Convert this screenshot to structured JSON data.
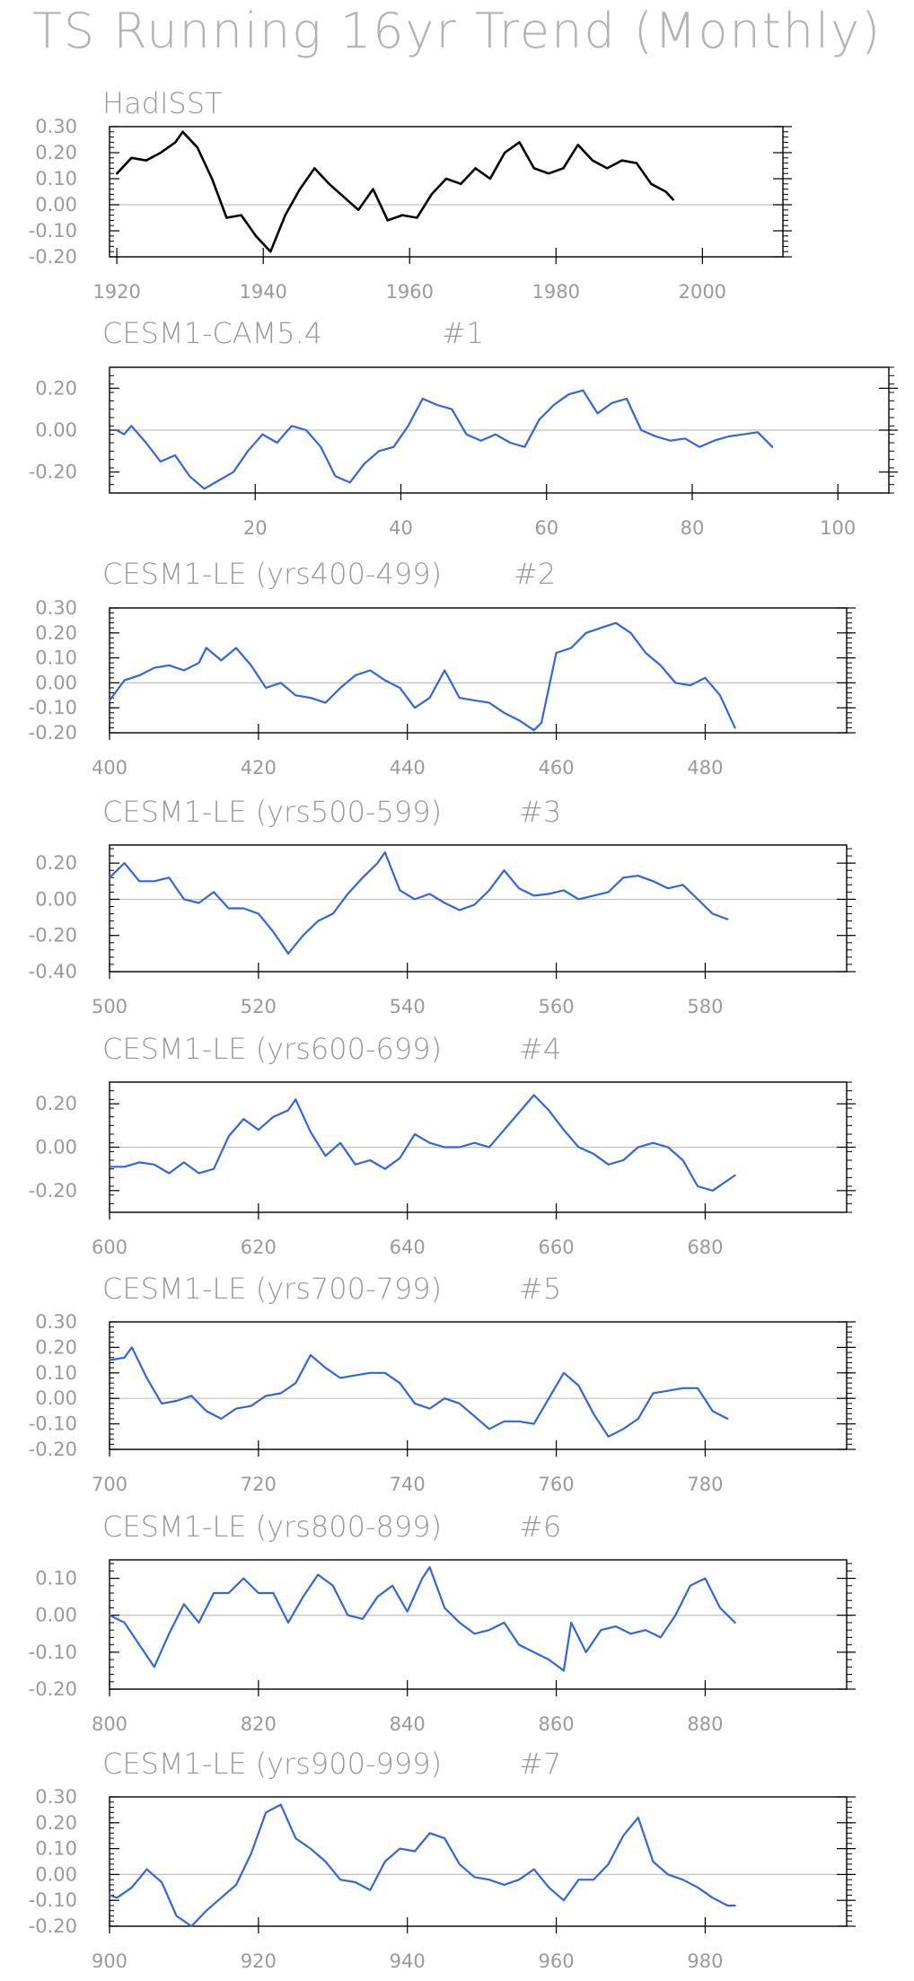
{
  "page": {
    "title": "TS Running 16yr Trend (Monthly)"
  },
  "colors": {
    "obs_line": "#000000",
    "model_line": "#3366dd",
    "zero_line": "#c0c0c0",
    "axes": "#000000",
    "text": "#9a9a9a"
  },
  "chart_data": [
    {
      "type": "line",
      "title": "HadISST",
      "run_label": "",
      "xlim": [
        1919,
        2011
      ],
      "ylim": [
        -0.2,
        0.3
      ],
      "yticks": [
        "-0.20",
        "-0.10",
        "0.00",
        "0.10",
        "0.20",
        "0.30"
      ],
      "ytick_values": [
        -0.2,
        -0.1,
        0,
        0.1,
        0.2,
        0.3
      ],
      "xticks": [
        1920,
        1940,
        1960,
        1980,
        2000
      ],
      "series": [
        {
          "x": [
            1920,
            1922,
            1924,
            1926,
            1928,
            1929,
            1931,
            1933,
            1935,
            1937,
            1939,
            1941,
            1943,
            1945,
            1947,
            1949,
            1951,
            1953,
            1955,
            1957,
            1959,
            1961,
            1963,
            1965,
            1967,
            1969,
            1971,
            1973,
            1975,
            1977,
            1979,
            1981,
            1983,
            1985,
            1987,
            1989,
            1991,
            1993,
            1995,
            1996
          ],
          "y": [
            0.12,
            0.18,
            0.17,
            0.2,
            0.24,
            0.28,
            0.22,
            0.1,
            -0.05,
            -0.04,
            -0.12,
            -0.18,
            -0.04,
            0.06,
            0.14,
            0.08,
            0.03,
            -0.02,
            0.06,
            -0.06,
            -0.04,
            -0.05,
            0.04,
            0.1,
            0.08,
            0.14,
            0.1,
            0.2,
            0.24,
            0.14,
            0.12,
            0.14,
            0.23,
            0.17,
            0.14,
            0.17,
            0.16,
            0.08,
            0.05,
            0.02
          ]
        }
      ]
    },
    {
      "type": "line",
      "title": "CESM1-CAM5.4",
      "run_label": "#1",
      "xlim": [
        0,
        107
      ],
      "ylim": [
        -0.3,
        0.3
      ],
      "yticks": [
        "-0.20",
        "0.00",
        "0.20"
      ],
      "ytick_values": [
        -0.2,
        0,
        0.2
      ],
      "xticks": [
        20,
        40,
        60,
        80,
        100
      ],
      "series": [
        {
          "x": [
            1,
            2,
            3,
            5,
            7,
            9,
            11,
            13,
            15,
            17,
            19,
            21,
            23,
            25,
            27,
            29,
            31,
            33,
            35,
            37,
            39,
            41,
            43,
            45,
            47,
            49,
            51,
            53,
            55,
            57,
            59,
            61,
            63,
            65,
            67,
            69,
            71,
            73,
            75,
            77,
            79,
            81,
            83,
            85,
            87,
            89,
            91
          ],
          "y": [
            0.0,
            -0.02,
            0.02,
            -0.06,
            -0.15,
            -0.12,
            -0.22,
            -0.28,
            -0.24,
            -0.2,
            -0.1,
            -0.02,
            -0.06,
            0.02,
            0.0,
            -0.08,
            -0.22,
            -0.25,
            -0.16,
            -0.1,
            -0.08,
            0.02,
            0.15,
            0.12,
            0.1,
            -0.02,
            -0.05,
            -0.02,
            -0.06,
            -0.08,
            0.05,
            0.12,
            0.17,
            0.19,
            0.08,
            0.13,
            0.15,
            0.0,
            -0.03,
            -0.05,
            -0.04,
            -0.08,
            -0.05,
            -0.03,
            -0.02,
            -0.01,
            -0.08
          ]
        }
      ]
    },
    {
      "type": "line",
      "title": "CESM1-LE (yrs400-499)",
      "run_label": "#2",
      "xlim": [
        400,
        499
      ],
      "ylim": [
        -0.2,
        0.3
      ],
      "yticks": [
        "-0.20",
        "-0.10",
        "0.00",
        "0.10",
        "0.20",
        "0.30"
      ],
      "ytick_values": [
        -0.2,
        -0.1,
        0,
        0.1,
        0.2,
        0.3
      ],
      "xticks": [
        400,
        420,
        440,
        460,
        480
      ],
      "series": [
        {
          "x": [
            400,
            402,
            404,
            406,
            408,
            410,
            412,
            413,
            415,
            417,
            419,
            421,
            423,
            425,
            427,
            429,
            431,
            433,
            435,
            437,
            439,
            441,
            443,
            445,
            447,
            449,
            451,
            453,
            455,
            457,
            458,
            460,
            462,
            464,
            466,
            468,
            470,
            472,
            474,
            476,
            478,
            480,
            482,
            484
          ],
          "y": [
            -0.07,
            0.01,
            0.03,
            0.06,
            0.07,
            0.05,
            0.08,
            0.14,
            0.09,
            0.14,
            0.07,
            -0.02,
            0.0,
            -0.05,
            -0.06,
            -0.08,
            -0.02,
            0.03,
            0.05,
            0.01,
            -0.02,
            -0.1,
            -0.06,
            0.05,
            -0.06,
            -0.07,
            -0.08,
            -0.12,
            -0.15,
            -0.19,
            -0.16,
            0.12,
            0.14,
            0.2,
            0.22,
            0.24,
            0.2,
            0.12,
            0.07,
            0.0,
            -0.01,
            0.02,
            -0.05,
            -0.18
          ]
        }
      ]
    },
    {
      "type": "line",
      "title": "CESM1-LE (yrs500-599)",
      "run_label": "#3",
      "xlim": [
        500,
        599
      ],
      "ylim": [
        -0.4,
        0.3
      ],
      "yticks": [
        "-0.40",
        "-0.20",
        "0.00",
        "0.20"
      ],
      "ytick_values": [
        -0.4,
        -0.2,
        0,
        0.2
      ],
      "xticks": [
        500,
        520,
        540,
        560,
        580
      ],
      "series": [
        {
          "x": [
            500,
            502,
            504,
            506,
            508,
            510,
            512,
            514,
            516,
            518,
            520,
            522,
            524,
            526,
            528,
            530,
            532,
            534,
            536,
            537,
            539,
            541,
            543,
            545,
            547,
            549,
            551,
            553,
            555,
            557,
            559,
            561,
            563,
            565,
            567,
            569,
            571,
            573,
            575,
            577,
            579,
            581,
            583
          ],
          "y": [
            0.12,
            0.2,
            0.1,
            0.1,
            0.12,
            0.0,
            -0.02,
            0.04,
            -0.05,
            -0.05,
            -0.08,
            -0.18,
            -0.3,
            -0.2,
            -0.12,
            -0.08,
            0.03,
            0.12,
            0.2,
            0.26,
            0.05,
            0.0,
            0.03,
            -0.02,
            -0.06,
            -0.03,
            0.05,
            0.16,
            0.06,
            0.02,
            0.03,
            0.05,
            0.0,
            0.02,
            0.04,
            0.12,
            0.13,
            0.1,
            0.06,
            0.08,
            0.0,
            -0.08,
            -0.11
          ]
        }
      ]
    },
    {
      "type": "line",
      "title": "CESM1-LE (yrs600-699)",
      "run_label": "#4",
      "xlim": [
        600,
        699
      ],
      "ylim": [
        -0.3,
        0.3
      ],
      "yticks": [
        "-0.20",
        "0.00",
        "0.20"
      ],
      "ytick_values": [
        -0.2,
        0,
        0.2
      ],
      "xticks": [
        600,
        620,
        640,
        660,
        680
      ],
      "series": [
        {
          "x": [
            600,
            602,
            604,
            606,
            608,
            610,
            612,
            614,
            616,
            618,
            620,
            622,
            624,
            625,
            627,
            629,
            631,
            633,
            635,
            637,
            639,
            641,
            643,
            645,
            647,
            649,
            651,
            653,
            655,
            657,
            659,
            661,
            663,
            665,
            667,
            669,
            671,
            673,
            675,
            677,
            679,
            681,
            684
          ],
          "y": [
            -0.09,
            -0.09,
            -0.07,
            -0.08,
            -0.12,
            -0.07,
            -0.12,
            -0.1,
            0.05,
            0.13,
            0.08,
            0.14,
            0.17,
            0.22,
            0.07,
            -0.04,
            0.02,
            -0.08,
            -0.06,
            -0.1,
            -0.05,
            0.06,
            0.02,
            0.0,
            0.0,
            0.02,
            0.0,
            0.08,
            0.16,
            0.24,
            0.17,
            0.08,
            0.0,
            -0.03,
            -0.08,
            -0.06,
            0.0,
            0.02,
            0.0,
            -0.06,
            -0.18,
            -0.2,
            -0.13
          ]
        }
      ]
    },
    {
      "type": "line",
      "title": "CESM1-LE (yrs700-799)",
      "run_label": "#5",
      "xlim": [
        700,
        799
      ],
      "ylim": [
        -0.2,
        0.3
      ],
      "yticks": [
        "-0.20",
        "-0.10",
        "0.00",
        "0.10",
        "0.20",
        "0.30"
      ],
      "ytick_values": [
        -0.2,
        -0.1,
        0,
        0.1,
        0.2,
        0.3
      ],
      "xticks": [
        700,
        720,
        740,
        760,
        780
      ],
      "series": [
        {
          "x": [
            700,
            702,
            703,
            705,
            707,
            709,
            711,
            713,
            715,
            717,
            719,
            721,
            723,
            725,
            727,
            729,
            731,
            733,
            735,
            737,
            739,
            741,
            743,
            745,
            747,
            749,
            751,
            753,
            755,
            757,
            759,
            761,
            763,
            765,
            767,
            769,
            771,
            773,
            775,
            777,
            779,
            781,
            783
          ],
          "y": [
            0.15,
            0.16,
            0.2,
            0.08,
            -0.02,
            -0.01,
            0.01,
            -0.05,
            -0.08,
            -0.04,
            -0.03,
            0.01,
            0.02,
            0.06,
            0.17,
            0.12,
            0.08,
            0.09,
            0.1,
            0.1,
            0.06,
            -0.02,
            -0.04,
            0.0,
            -0.02,
            -0.07,
            -0.12,
            -0.09,
            -0.09,
            -0.1,
            0.0,
            0.1,
            0.05,
            -0.06,
            -0.15,
            -0.12,
            -0.08,
            0.02,
            0.03,
            0.04,
            0.04,
            -0.05,
            -0.08
          ]
        }
      ]
    },
    {
      "type": "line",
      "title": "CESM1-LE (yrs800-899)",
      "run_label": "#6",
      "xlim": [
        800,
        899
      ],
      "ylim": [
        -0.2,
        0.15
      ],
      "yticks": [
        "-0.20",
        "-0.10",
        "0.00",
        "0.10"
      ],
      "ytick_values": [
        -0.2,
        -0.1,
        0,
        0.1
      ],
      "xticks": [
        800,
        820,
        840,
        860,
        880
      ],
      "series": [
        {
          "x": [
            800,
            802,
            804,
            806,
            808,
            810,
            812,
            814,
            816,
            818,
            820,
            822,
            824,
            826,
            828,
            830,
            832,
            834,
            836,
            838,
            840,
            842,
            843,
            845,
            847,
            849,
            851,
            853,
            855,
            857,
            859,
            861,
            862,
            864,
            866,
            868,
            870,
            872,
            874,
            876,
            878,
            880,
            882,
            884
          ],
          "y": [
            0.0,
            -0.02,
            -0.08,
            -0.14,
            -0.05,
            0.03,
            -0.02,
            0.06,
            0.06,
            0.1,
            0.06,
            0.06,
            -0.02,
            0.05,
            0.11,
            0.08,
            0.0,
            -0.01,
            0.05,
            0.08,
            0.01,
            0.1,
            0.13,
            0.02,
            -0.02,
            -0.05,
            -0.04,
            -0.02,
            -0.08,
            -0.1,
            -0.12,
            -0.15,
            -0.02,
            -0.1,
            -0.04,
            -0.03,
            -0.05,
            -0.04,
            -0.06,
            0.0,
            0.08,
            0.1,
            0.02,
            -0.02
          ]
        }
      ]
    },
    {
      "type": "line",
      "title": "CESM1-LE (yrs900-999)",
      "run_label": "#7",
      "xlim": [
        900,
        999
      ],
      "ylim": [
        -0.2,
        0.3
      ],
      "yticks": [
        "-0.20",
        "-0.10",
        "0.00",
        "0.10",
        "0.20",
        "0.30"
      ],
      "ytick_values": [
        -0.2,
        -0.1,
        0,
        0.1,
        0.2,
        0.3
      ],
      "xticks": [
        900,
        920,
        940,
        960,
        980
      ],
      "series": [
        {
          "x": [
            900,
            901,
            903,
            905,
            907,
            909,
            911,
            913,
            915,
            917,
            919,
            921,
            923,
            925,
            927,
            929,
            931,
            933,
            935,
            937,
            939,
            941,
            943,
            945,
            947,
            949,
            951,
            953,
            955,
            957,
            959,
            961,
            963,
            965,
            967,
            969,
            971,
            973,
            975,
            977,
            979,
            981,
            983,
            984
          ],
          "y": [
            -0.08,
            -0.09,
            -0.05,
            0.02,
            -0.03,
            -0.16,
            -0.2,
            -0.14,
            -0.09,
            -0.04,
            0.08,
            0.24,
            0.27,
            0.14,
            0.1,
            0.05,
            -0.02,
            -0.03,
            -0.06,
            0.05,
            0.1,
            0.09,
            0.16,
            0.14,
            0.04,
            -0.01,
            -0.02,
            -0.04,
            -0.02,
            0.02,
            -0.05,
            -0.1,
            -0.02,
            -0.02,
            0.04,
            0.15,
            0.22,
            0.05,
            0.0,
            -0.02,
            -0.05,
            -0.09,
            -0.12,
            -0.12
          ]
        }
      ]
    }
  ]
}
